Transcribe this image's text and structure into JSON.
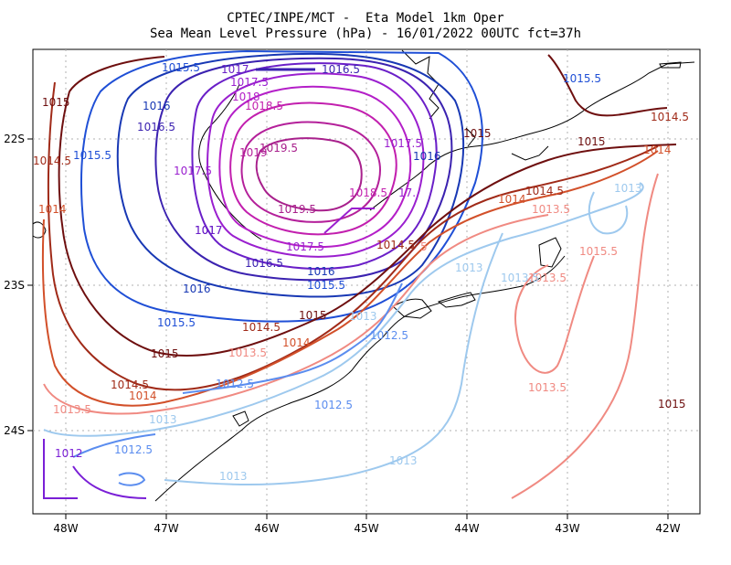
{
  "title_line1": "CPTEC/INPE/MCT -  Eta Model 1km Oper",
  "title_line2": "Sea Mean Level Pressure (hPa) - 16/01/2022 00UTC fct=37h",
  "x_ticks": [
    "48W",
    "47W",
    "46W",
    "45W",
    "44W",
    "43W",
    "42W"
  ],
  "y_ticks": [
    "22S",
    "23S",
    "24S"
  ],
  "level_colors": {
    "1012": "#7a1fd6",
    "1012.5": "#5b8def",
    "1013": "#9ec9ee",
    "1013.5": "#f08a82",
    "1014": "#d2502a",
    "1014.5": "#a02a18",
    "1015": "#6e0f0f",
    "1015.5": "#1f4fd6",
    "1016": "#1838b4",
    "1016.5": "#3b22b0",
    "1017": "#6a1fc8",
    "1017.5": "#9a1fcf",
    "1018": "#b41fc8",
    "1018.5": "#c21fae",
    "1019": "#b4209a",
    "1019.5": "#a8208c"
  },
  "contour_labels": [
    {
      "text": "1015.5",
      "level": "1015.5"
    },
    {
      "text": "1017",
      "level": "1017"
    },
    {
      "text": "1016.5",
      "level": "1016.5"
    },
    {
      "text": "1015",
      "level": "1015"
    },
    {
      "text": "1017.5",
      "level": "1017.5"
    },
    {
      "text": "1016",
      "level": "1016"
    },
    {
      "text": "1018",
      "level": "1018"
    },
    {
      "text": "1018.5",
      "level": "1018.5"
    },
    {
      "text": "1015.5",
      "level": "1015.5"
    },
    {
      "text": "1016.5",
      "level": "1016.5"
    },
    {
      "text": "1015",
      "level": "1015"
    },
    {
      "text": "1014.5",
      "level": "1014.5"
    },
    {
      "text": "1014.5",
      "level": "1014.5"
    },
    {
      "text": "1015.5",
      "level": "1015.5"
    },
    {
      "text": "1019.5",
      "level": "1019.5"
    },
    {
      "text": "1017.5",
      "level": "1017.5"
    },
    {
      "text": "1016",
      "level": "1016"
    },
    {
      "text": "1015",
      "level": "1015"
    },
    {
      "text": "1014",
      "level": "1014"
    },
    {
      "text": "1017.5",
      "level": "1017.5"
    },
    {
      "text": "1019",
      "level": "1019"
    },
    {
      "text": "1018.5",
      "level": "1018.5"
    },
    {
      "text": "1017",
      "level": "1017"
    },
    {
      "text": "1019.5",
      "level": "1019.5"
    },
    {
      "text": "1014.5",
      "level": "1014.5"
    },
    {
      "text": "1014",
      "level": "1014"
    },
    {
      "text": "1013",
      "level": "1013"
    },
    {
      "text": "1013.5",
      "level": "1013.5"
    },
    {
      "text": "1014",
      "level": "1014"
    },
    {
      "text": "1017",
      "level": "1017"
    },
    {
      "text": "1017.5",
      "level": "1017.5"
    },
    {
      "text": "1014.5",
      "level": "1014.5"
    },
    {
      "text": "1016.5",
      "level": "1016.5"
    },
    {
      "text": "1016",
      "level": "1016"
    },
    {
      "text": "1013",
      "level": "1013"
    },
    {
      "text": "1013.5",
      "level": "1013.5"
    },
    {
      "text": "1015.5",
      "level": "1015.5"
    },
    {
      "text": "1016",
      "level": "1016"
    },
    {
      "text": "1015.5",
      "level": "1015.5"
    },
    {
      "text": "1015",
      "level": "1015"
    },
    {
      "text": "1013",
      "level": "1013"
    },
    {
      "text": "1013.5",
      "level": "1013.5"
    },
    {
      "text": "1015.5",
      "level": "1015.5"
    },
    {
      "text": "1014.5",
      "level": "1014.5"
    },
    {
      "text": "1012.5",
      "level": "1012.5"
    },
    {
      "text": "1013.5",
      "level": "1013.5"
    },
    {
      "text": "1015",
      "level": "1015"
    },
    {
      "text": "1014",
      "level": "1014"
    },
    {
      "text": "1012.5",
      "level": "1012.5"
    },
    {
      "text": "1014.5",
      "level": "1014.5"
    },
    {
      "text": "1013.5",
      "level": "1013.5"
    },
    {
      "text": "1014",
      "level": "1014"
    },
    {
      "text": "1012.5",
      "level": "1012.5"
    },
    {
      "text": "1013",
      "level": "1013"
    },
    {
      "text": "1013.5",
      "level": "1013.5"
    },
    {
      "text": "1015",
      "level": "1015"
    },
    {
      "text": "1012",
      "level": "1012"
    },
    {
      "text": "1012.5",
      "level": "1012.5"
    },
    {
      "text": "1013",
      "level": "1013"
    },
    {
      "text": "1013",
      "level": "1013"
    },
    {
      "text": "5",
      "level": "1013.5"
    },
    {
      "text": "17.",
      "level": "1017.5"
    }
  ]
}
